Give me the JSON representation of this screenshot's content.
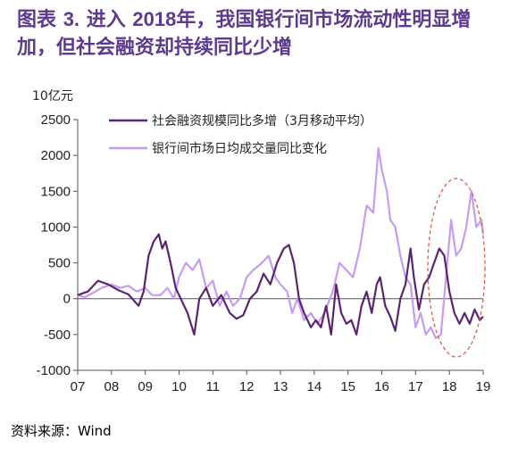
{
  "title": {
    "prefix": "图表",
    "number": "3.",
    "text": "进入",
    "year": "2018",
    "rest": "年，我国银行间市场流动性明显增加，但社会融资却持续同比少增"
  },
  "unit_label": "10亿元",
  "source": "资料来源：Wind",
  "chart_data": {
    "type": "line",
    "ylim": [
      -1000,
      2500
    ],
    "yticks": [
      -1000,
      -500,
      0,
      500,
      1000,
      1500,
      2000,
      2500
    ],
    "xlim": [
      2007,
      2019
    ],
    "xticks": [
      2007,
      2008,
      2009,
      2010,
      2011,
      2012,
      2013,
      2014,
      2015,
      2016,
      2017,
      2018,
      2019
    ],
    "xtick_labels": [
      "07",
      "08",
      "09",
      "10",
      "11",
      "12",
      "13",
      "14",
      "15",
      "16",
      "17",
      "18",
      "19"
    ],
    "grid": false,
    "legend_position": "top-center",
    "annotation": "dashed-red-ellipse-around-2018",
    "series": [
      {
        "name": "社会融资规模同比多增（3月移动平均）",
        "color": "#5b2470",
        "points": [
          [
            2007.0,
            50
          ],
          [
            2007.3,
            100
          ],
          [
            2007.6,
            250
          ],
          [
            2007.9,
            200
          ],
          [
            2008.2,
            120
          ],
          [
            2008.5,
            60
          ],
          [
            2008.8,
            -100
          ],
          [
            2008.95,
            100
          ],
          [
            2009.1,
            600
          ],
          [
            2009.25,
            800
          ],
          [
            2009.4,
            900
          ],
          [
            2009.5,
            700
          ],
          [
            2009.6,
            800
          ],
          [
            2009.75,
            500
          ],
          [
            2009.9,
            150
          ],
          [
            2010.1,
            -50
          ],
          [
            2010.25,
            -200
          ],
          [
            2010.45,
            -500
          ],
          [
            2010.6,
            0
          ],
          [
            2010.8,
            150
          ],
          [
            2011.0,
            -100
          ],
          [
            2011.25,
            50
          ],
          [
            2011.5,
            -200
          ],
          [
            2011.7,
            -280
          ],
          [
            2011.9,
            -230
          ],
          [
            2012.1,
            0
          ],
          [
            2012.3,
            100
          ],
          [
            2012.5,
            350
          ],
          [
            2012.7,
            200
          ],
          [
            2012.9,
            500
          ],
          [
            2013.1,
            700
          ],
          [
            2013.25,
            750
          ],
          [
            2013.4,
            500
          ],
          [
            2013.55,
            0
          ],
          [
            2013.7,
            -200
          ],
          [
            2013.9,
            -400
          ],
          [
            2014.05,
            -300
          ],
          [
            2014.2,
            -400
          ],
          [
            2014.35,
            -100
          ],
          [
            2014.5,
            -500
          ],
          [
            2014.65,
            200
          ],
          [
            2014.8,
            -200
          ],
          [
            2014.95,
            -350
          ],
          [
            2015.1,
            -300
          ],
          [
            2015.25,
            -500
          ],
          [
            2015.4,
            -100
          ],
          [
            2015.55,
            100
          ],
          [
            2015.7,
            -200
          ],
          [
            2015.85,
            200
          ],
          [
            2015.95,
            300
          ],
          [
            2016.1,
            -100
          ],
          [
            2016.25,
            -250
          ],
          [
            2016.4,
            -450
          ],
          [
            2016.55,
            0
          ],
          [
            2016.7,
            200
          ],
          [
            2016.85,
            700
          ],
          [
            2016.95,
            300
          ],
          [
            2017.1,
            -150
          ],
          [
            2017.25,
            200
          ],
          [
            2017.4,
            300
          ],
          [
            2017.55,
            500
          ],
          [
            2017.7,
            700
          ],
          [
            2017.85,
            600
          ],
          [
            2018.0,
            100
          ],
          [
            2018.15,
            -200
          ],
          [
            2018.3,
            -350
          ],
          [
            2018.45,
            -200
          ],
          [
            2018.6,
            -350
          ],
          [
            2018.75,
            -150
          ],
          [
            2018.9,
            -300
          ],
          [
            2019.0,
            -250
          ]
        ]
      },
      {
        "name": "银行间市场日均成交量同比变化",
        "color": "#c49cf2",
        "points": [
          [
            2007.0,
            50
          ],
          [
            2007.2,
            20
          ],
          [
            2007.45,
            80
          ],
          [
            2007.7,
            150
          ],
          [
            2008.0,
            200
          ],
          [
            2008.25,
            150
          ],
          [
            2008.5,
            180
          ],
          [
            2008.75,
            100
          ],
          [
            2009.0,
            150
          ],
          [
            2009.2,
            50
          ],
          [
            2009.45,
            50
          ],
          [
            2009.65,
            150
          ],
          [
            2009.85,
            0
          ],
          [
            2010.0,
            300
          ],
          [
            2010.2,
            500
          ],
          [
            2010.4,
            400
          ],
          [
            2010.6,
            550
          ],
          [
            2010.8,
            150
          ],
          [
            2011.0,
            250
          ],
          [
            2011.2,
            -100
          ],
          [
            2011.4,
            100
          ],
          [
            2011.6,
            -100
          ],
          [
            2011.8,
            0
          ],
          [
            2012.0,
            300
          ],
          [
            2012.2,
            400
          ],
          [
            2012.45,
            500
          ],
          [
            2012.65,
            600
          ],
          [
            2012.85,
            300
          ],
          [
            2013.0,
            200
          ],
          [
            2013.2,
            100
          ],
          [
            2013.35,
            -200
          ],
          [
            2013.5,
            0
          ],
          [
            2013.7,
            -300
          ],
          [
            2013.9,
            -200
          ],
          [
            2014.1,
            -350
          ],
          [
            2014.3,
            -200
          ],
          [
            2014.55,
            100
          ],
          [
            2014.75,
            500
          ],
          [
            2014.95,
            400
          ],
          [
            2015.15,
            300
          ],
          [
            2015.35,
            700
          ],
          [
            2015.55,
            1300
          ],
          [
            2015.75,
            1200
          ],
          [
            2015.9,
            2100
          ],
          [
            2016.0,
            1800
          ],
          [
            2016.15,
            1500
          ],
          [
            2016.25,
            1100
          ],
          [
            2016.4,
            1000
          ],
          [
            2016.55,
            600
          ],
          [
            2016.7,
            300
          ],
          [
            2016.85,
            200
          ],
          [
            2017.0,
            -400
          ],
          [
            2017.15,
            -200
          ],
          [
            2017.3,
            -500
          ],
          [
            2017.45,
            -400
          ],
          [
            2017.6,
            -550
          ],
          [
            2017.75,
            -500
          ],
          [
            2017.9,
            300
          ],
          [
            2018.05,
            1100
          ],
          [
            2018.2,
            600
          ],
          [
            2018.35,
            700
          ],
          [
            2018.5,
            1000
          ],
          [
            2018.65,
            1500
          ],
          [
            2018.8,
            1000
          ],
          [
            2018.95,
            1100
          ],
          [
            2019.0,
            900
          ]
        ]
      }
    ]
  }
}
